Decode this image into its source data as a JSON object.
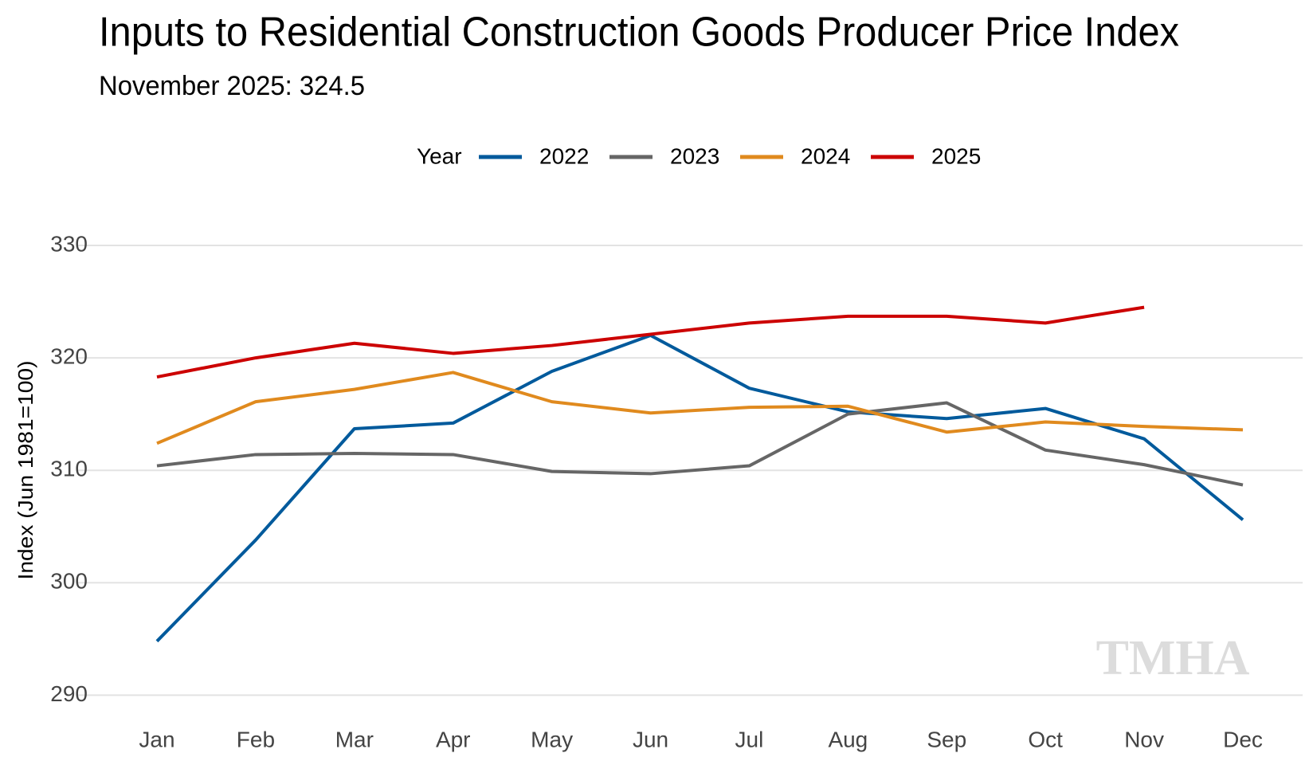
{
  "chart_data": {
    "type": "line",
    "title": "Inputs to Residential Construction Goods Producer Price Index",
    "subtitle": "November 2025: 324.5",
    "ylabel": "Index (Jun 1981=100)",
    "legend_title": "Year",
    "watermark": "TMHA",
    "categories": [
      "Jan",
      "Feb",
      "Mar",
      "Apr",
      "May",
      "Jun",
      "Jul",
      "Aug",
      "Sep",
      "Oct",
      "Nov",
      "Dec"
    ],
    "series": [
      {
        "name": "2022",
        "color": "#005a9c",
        "values": [
          294.8,
          303.8,
          313.7,
          314.2,
          318.8,
          322.0,
          317.3,
          315.2,
          314.6,
          315.5,
          312.8,
          305.6
        ]
      },
      {
        "name": "2023",
        "color": "#666666",
        "values": [
          310.4,
          311.4,
          311.5,
          311.4,
          309.9,
          309.7,
          310.4,
          315.0,
          316.0,
          311.8,
          310.5,
          308.7
        ]
      },
      {
        "name": "2024",
        "color": "#e08a1e",
        "values": [
          312.4,
          316.1,
          317.2,
          318.7,
          316.1,
          315.1,
          315.6,
          315.7,
          313.4,
          314.3,
          313.9,
          313.6
        ]
      },
      {
        "name": "2025",
        "color": "#cc0000",
        "values": [
          318.3,
          320.0,
          321.3,
          320.4,
          321.1,
          322.1,
          323.1,
          323.7,
          323.7,
          323.1,
          324.5,
          null
        ]
      }
    ],
    "ylim": [
      288.4,
      333.4
    ],
    "yticks": [
      290,
      300,
      310,
      320,
      330
    ],
    "grid": true,
    "legend": "top"
  }
}
